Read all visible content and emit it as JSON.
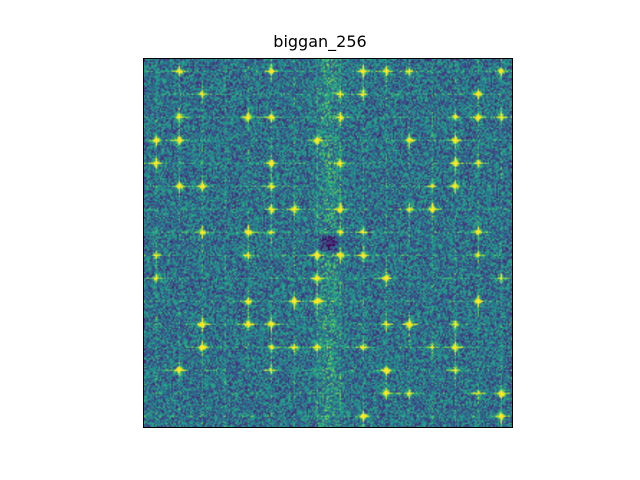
{
  "chart_data": {
    "type": "heatmap",
    "title": "biggan_256",
    "xlabel": "",
    "ylabel": "",
    "axes_visible": false,
    "colormap": "viridis",
    "grid_size": [
      256,
      256
    ],
    "value_range": [
      0,
      1
    ],
    "description_features": {
      "center_dark_spot": true,
      "grid_artifact_period": 16,
      "bright_peaks": true
    }
  }
}
